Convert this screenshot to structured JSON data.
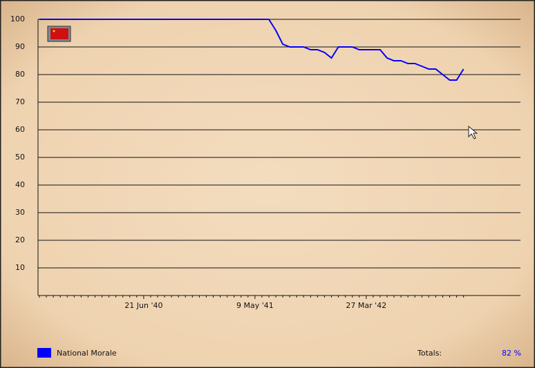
{
  "chart_data": {
    "type": "line",
    "categories": [
      null,
      null,
      null,
      null,
      null,
      null,
      null,
      null,
      null,
      null,
      null,
      null,
      null,
      null,
      null,
      "21 Jun '40",
      null,
      null,
      null,
      null,
      null,
      null,
      null,
      null,
      null,
      null,
      null,
      null,
      null,
      null,
      null,
      "9 May '41",
      null,
      null,
      null,
      null,
      null,
      null,
      null,
      null,
      null,
      null,
      null,
      null,
      null,
      null,
      null,
      "27 Mar '42",
      null,
      null,
      null,
      null,
      null,
      null,
      null,
      null,
      null,
      null,
      null,
      null,
      null,
      null
    ],
    "series": [
      {
        "name": "National Morale",
        "color": "#0000ff",
        "values": [
          100,
          100,
          100,
          100,
          100,
          100,
          100,
          100,
          100,
          100,
          100,
          100,
          100,
          100,
          100,
          100,
          100,
          100,
          100,
          100,
          100,
          100,
          100,
          100,
          100,
          100,
          100,
          100,
          100,
          100,
          100,
          100,
          100,
          100,
          96,
          91,
          90,
          90,
          90,
          89,
          89,
          88,
          86,
          90,
          90,
          90,
          89,
          89,
          89,
          89,
          86,
          85,
          85,
          84,
          84,
          83,
          82,
          82,
          80,
          78,
          78,
          82
        ]
      }
    ],
    "ylim": [
      0,
      100
    ],
    "yticks": [
      10,
      20,
      30,
      40,
      50,
      60,
      70,
      80,
      90,
      100
    ],
    "grid": true,
    "totals": {
      "label": "Totals:",
      "value": "82 %"
    }
  }
}
